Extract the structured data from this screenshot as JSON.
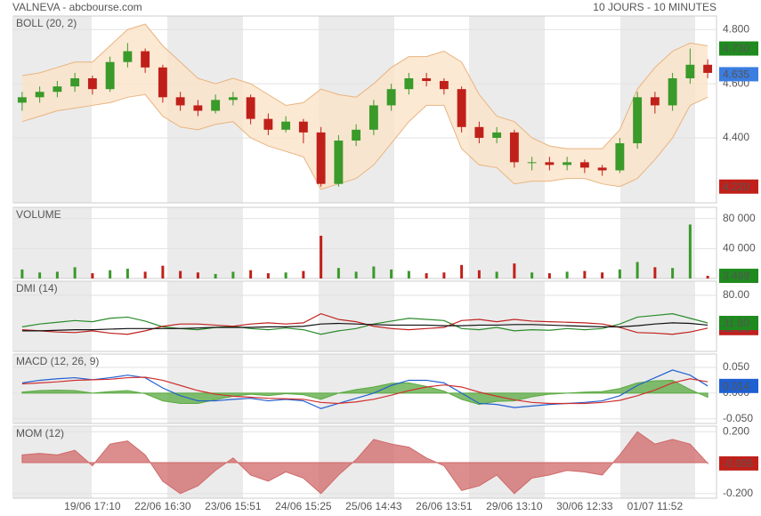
{
  "header": {
    "title": "VALNEVA - abcbourse.com",
    "period": "10 JOURS - 10 MINUTES"
  },
  "chart_data": [
    {
      "type": "candlestick",
      "title": "BOLL (20, 2)",
      "title_color": "#e0a060",
      "up_color": "#3a9a2a",
      "down_color": "#c0201a",
      "band_color": "#fbe3c8",
      "band_line_color": "#e8b480",
      "ylim": [
        4.16,
        4.85
      ],
      "yticks": [
        {
          "value": 4.8,
          "label": "4.800"
        },
        {
          "value": 4.6,
          "label": "4.600"
        },
        {
          "value": 4.4,
          "label": "4.400"
        }
      ],
      "open": [
        4.53,
        4.55,
        4.57,
        4.59,
        4.62,
        4.58,
        4.68,
        4.72,
        4.66,
        4.55,
        4.52,
        4.5,
        4.54,
        4.55,
        4.47,
        4.43,
        4.46,
        4.42,
        4.23,
        4.39,
        4.43,
        4.52,
        4.58,
        4.62,
        4.61,
        4.58,
        4.44,
        4.4,
        4.42,
        4.31,
        4.31,
        4.3,
        4.31,
        4.29,
        4.28,
        4.38,
        4.55,
        4.52,
        4.62,
        4.67
      ],
      "high": [
        4.57,
        4.59,
        4.61,
        4.64,
        4.63,
        4.7,
        4.75,
        4.73,
        4.67,
        4.57,
        4.54,
        4.56,
        4.57,
        4.56,
        4.49,
        4.48,
        4.47,
        4.44,
        4.41,
        4.45,
        4.54,
        4.6,
        4.64,
        4.64,
        4.62,
        4.59,
        4.46,
        4.44,
        4.43,
        4.33,
        4.33,
        4.33,
        4.32,
        4.3,
        4.4,
        4.57,
        4.57,
        4.64,
        4.73,
        4.69
      ],
      "low": [
        4.5,
        4.53,
        4.55,
        4.57,
        4.56,
        4.57,
        4.66,
        4.64,
        4.53,
        4.5,
        4.48,
        4.49,
        4.52,
        4.45,
        4.41,
        4.42,
        4.38,
        4.22,
        4.22,
        4.37,
        4.41,
        4.5,
        4.56,
        4.59,
        4.56,
        4.42,
        4.38,
        4.38,
        4.29,
        4.28,
        4.28,
        4.28,
        4.27,
        4.26,
        4.27,
        4.36,
        4.49,
        4.5,
        4.6,
        4.62
      ],
      "close": [
        4.55,
        4.57,
        4.59,
        4.62,
        4.58,
        4.68,
        4.72,
        4.66,
        4.55,
        4.52,
        4.5,
        4.54,
        4.55,
        4.47,
        4.43,
        4.46,
        4.42,
        4.23,
        4.39,
        4.43,
        4.52,
        4.58,
        4.62,
        4.61,
        4.58,
        4.44,
        4.4,
        4.42,
        4.31,
        4.31,
        4.3,
        4.31,
        4.29,
        4.28,
        4.38,
        4.55,
        4.52,
        4.62,
        4.67,
        4.64
      ],
      "upper": [
        4.63,
        4.64,
        4.66,
        4.68,
        4.68,
        4.74,
        4.8,
        4.82,
        4.74,
        4.68,
        4.62,
        4.6,
        4.62,
        4.6,
        4.56,
        4.52,
        4.53,
        4.58,
        4.56,
        4.55,
        4.6,
        4.66,
        4.7,
        4.7,
        4.72,
        4.68,
        4.56,
        4.48,
        4.46,
        4.4,
        4.37,
        4.36,
        4.36,
        4.36,
        4.43,
        4.58,
        4.66,
        4.72,
        4.75,
        4.74
      ],
      "lower": [
        4.46,
        4.48,
        4.5,
        4.51,
        4.52,
        4.53,
        4.55,
        4.56,
        4.48,
        4.44,
        4.43,
        4.45,
        4.46,
        4.4,
        4.37,
        4.35,
        4.33,
        4.21,
        4.23,
        4.25,
        4.3,
        4.38,
        4.46,
        4.52,
        4.52,
        4.36,
        4.3,
        4.29,
        4.23,
        4.24,
        4.24,
        4.25,
        4.25,
        4.23,
        4.22,
        4.25,
        4.32,
        4.4,
        4.52,
        4.55
      ],
      "markers": [
        {
          "value": 4.73,
          "label": "4.730",
          "color": "#1f8a1f"
        },
        {
          "value": 4.635,
          "label": "4.635",
          "color": "#3b7de0"
        },
        {
          "value": 4.22,
          "label": "4.220",
          "color": "#c0201a"
        }
      ]
    },
    {
      "type": "bar",
      "title": "VOLUME",
      "title_color": "#3a9a2a",
      "up_color": "#3a9a2a",
      "down_color": "#c0201a",
      "ylim": [
        0,
        95000
      ],
      "yticks": [
        {
          "value": 80000,
          "label": "80 000"
        },
        {
          "value": 40000,
          "label": "40 000"
        }
      ],
      "values": [
        12000,
        8000,
        9000,
        15000,
        7000,
        11000,
        13000,
        9000,
        17000,
        10000,
        8000,
        6000,
        9000,
        11000,
        7000,
        8000,
        10000,
        57000,
        14000,
        9000,
        16000,
        12000,
        10000,
        7000,
        8000,
        18000,
        11000,
        9000,
        20000,
        8000,
        7000,
        9000,
        10000,
        8000,
        12000,
        22000,
        15000,
        14000,
        72000,
        3499
      ],
      "markers": [
        {
          "value": 3499,
          "label": "3 499",
          "color": "#1f8a1f"
        }
      ]
    },
    {
      "type": "line",
      "title": "DMI (14)",
      "title_color": "#2a6a2a",
      "ylim": [
        -18,
        105
      ],
      "yticks": [
        {
          "value": 80,
          "label": "80.00"
        }
      ],
      "series": [
        {
          "color": "#2a8a2a",
          "values": [
            25,
            30,
            33,
            36,
            34,
            40,
            42,
            35,
            25,
            22,
            20,
            24,
            26,
            22,
            20,
            23,
            20,
            12,
            18,
            22,
            30,
            35,
            40,
            38,
            36,
            22,
            20,
            24,
            18,
            20,
            19,
            22,
            20,
            22,
            30,
            42,
            45,
            48,
            40,
            31.8
          ]
        },
        {
          "color": "#c02020",
          "values": [
            20,
            18,
            16,
            15,
            18,
            14,
            12,
            18,
            26,
            30,
            30,
            28,
            26,
            30,
            32,
            30,
            32,
            48,
            38,
            34,
            26,
            22,
            20,
            22,
            24,
            36,
            38,
            34,
            38,
            35,
            34,
            33,
            32,
            30,
            24,
            15,
            14,
            12,
            16,
            22.81
          ]
        },
        {
          "color": "#111111",
          "values": [
            18,
            18,
            19,
            20,
            20,
            21,
            22,
            22,
            22,
            22,
            23,
            24,
            24,
            24,
            25,
            25,
            26,
            30,
            31,
            30,
            29,
            28,
            28,
            28,
            27,
            27,
            28,
            28,
            29,
            29,
            28,
            27,
            26,
            25,
            25,
            27,
            30,
            32,
            31,
            28
          ]
        }
      ],
      "markers": [
        {
          "value": 22.81,
          "label": "22.81",
          "color": "#c02020"
        },
        {
          "value": 31.8,
          "label": "31.80",
          "color": "#1f8a1f"
        }
      ]
    },
    {
      "type": "line",
      "title": "MACD (12, 26, 9)",
      "title_color": "#2060d0",
      "ylim": [
        -0.059,
        0.076
      ],
      "yticks": [
        {
          "value": 0.05,
          "label": "0.050"
        },
        {
          "value": 0,
          "label": "0.000"
        },
        {
          "value": -0.05,
          "label": "-0.050"
        }
      ],
      "series": [
        {
          "color": "#5aaa40",
          "area": true,
          "values": [
            0.002,
            0.005,
            0.006,
            0.005,
            0,
            0.003,
            0.005,
            -0.001,
            -0.015,
            -0.02,
            -0.02,
            -0.013,
            -0.006,
            -0.002,
            -0.005,
            -0.001,
            -0.003,
            -0.012,
            0,
            0.007,
            0.012,
            0.019,
            0.02,
            0.013,
            0.004,
            -0.012,
            -0.022,
            -0.016,
            -0.015,
            -0.007,
            -0.002,
            0,
            0.002,
            0.003,
            0.009,
            0.02,
            0.024,
            0.025,
            0.007,
            -0.008
          ]
        },
        {
          "color": "#2060d0",
          "values": [
            0.02,
            0.025,
            0.028,
            0.03,
            0.026,
            0.03,
            0.035,
            0.03,
            0.01,
            -0.005,
            -0.015,
            -0.015,
            -0.012,
            -0.01,
            -0.015,
            -0.012,
            -0.015,
            -0.03,
            -0.02,
            -0.01,
            0,
            0.015,
            0.025,
            0.025,
            0.02,
            0,
            -0.02,
            -0.022,
            -0.028,
            -0.025,
            -0.022,
            -0.02,
            -0.018,
            -0.015,
            -0.005,
            0.015,
            0.03,
            0.045,
            0.035,
            0.014
          ]
        },
        {
          "color": "#d03030",
          "values": [
            0.018,
            0.02,
            0.022,
            0.025,
            0.026,
            0.027,
            0.03,
            0.031,
            0.025,
            0.015,
            0.005,
            -0.002,
            -0.006,
            -0.008,
            -0.01,
            -0.011,
            -0.012,
            -0.018,
            -0.02,
            -0.017,
            -0.012,
            -0.004,
            0.005,
            0.012,
            0.016,
            0.012,
            0.002,
            -0.006,
            -0.013,
            -0.018,
            -0.02,
            -0.02,
            -0.02,
            -0.018,
            -0.014,
            -0.005,
            0.006,
            0.02,
            0.028,
            0.022
          ]
        }
      ],
      "markers": [
        {
          "value": 0.014,
          "label": "0.014",
          "color": "#2060d0"
        }
      ]
    },
    {
      "type": "line",
      "title": "MOM (12)",
      "title_color": "#c04040",
      "ylim": [
        -0.23,
        0.236
      ],
      "yticks": [
        {
          "value": 0.2,
          "label": "0.200"
        },
        {
          "value": -0.2,
          "label": "-0.200"
        }
      ],
      "categories": [
        null,
        null,
        null,
        null,
        "19/06 17:10",
        null,
        null,
        null,
        "22/06 16:30",
        null,
        null,
        null,
        "23/06 15:51",
        null,
        null,
        null,
        "24/06 15:25",
        null,
        null,
        null,
        "25/06 14:43",
        null,
        null,
        null,
        "26/06 13:51",
        null,
        null,
        null,
        "29/06 13:10",
        null,
        null,
        null,
        "30/06 12:33",
        null,
        null,
        null,
        "01/07 11:52",
        null,
        null,
        null
      ],
      "series": [
        {
          "color": "#d06868",
          "area": true,
          "values": [
            0.05,
            0.06,
            0.05,
            0.08,
            -0.02,
            0.12,
            0.14,
            0.05,
            -0.12,
            -0.2,
            -0.15,
            -0.05,
            0.03,
            -0.08,
            -0.12,
            -0.06,
            -0.1,
            -0.2,
            -0.08,
            0.02,
            0.15,
            0.12,
            0.1,
            0.03,
            -0.02,
            -0.18,
            -0.15,
            -0.08,
            -0.2,
            -0.1,
            -0.08,
            -0.05,
            -0.06,
            -0.08,
            0.05,
            0.2,
            0.12,
            0.15,
            0.12,
            -0.005
          ]
        }
      ],
      "markers": [
        {
          "value": -0.005,
          "label": "-0.005",
          "color": "#c0201a"
        }
      ]
    }
  ]
}
